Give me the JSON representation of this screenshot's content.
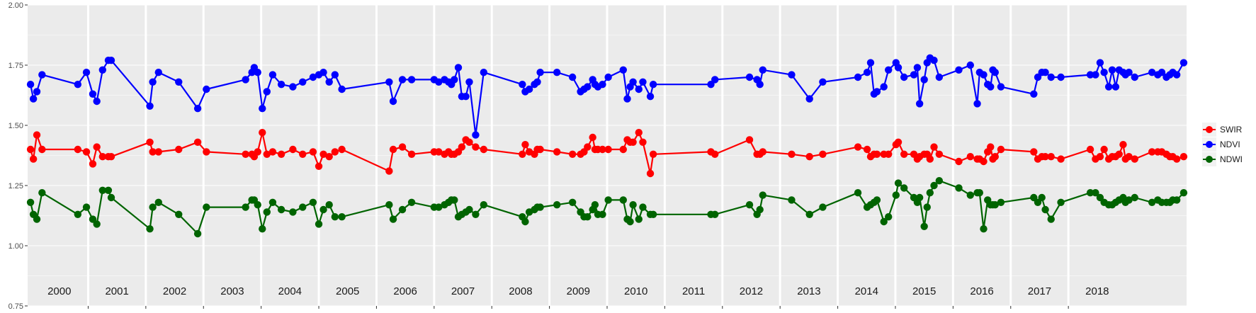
{
  "chart_data": {
    "type": "line",
    "ylim": [
      0.75,
      2.0
    ],
    "y_ticks": [
      "0.75",
      "1.00",
      "1.25",
      "1.50",
      "1.75",
      "2.00"
    ],
    "year_labels": [
      "2000",
      "2001",
      "2002",
      "2003",
      "2004",
      "2005",
      "2006",
      "2007",
      "2008",
      "2009",
      "2010",
      "2011",
      "2012",
      "2013",
      "2014",
      "2015",
      "2016",
      "2017",
      "2018"
    ],
    "grid": true,
    "legend_position": "right",
    "series": [
      {
        "name": "SWIR",
        "color": "#ff0000",
        "x": [
          0.0,
          0.05,
          0.11,
          0.2,
          0.82,
          0.97,
          1.08,
          1.15,
          1.25,
          1.35,
          1.4,
          2.07,
          2.12,
          2.22,
          2.57,
          2.9,
          3.05,
          3.73,
          3.84,
          3.88,
          3.94,
          4.02,
          4.1,
          4.2,
          4.35,
          4.55,
          4.72,
          4.9,
          5.0,
          5.08,
          5.18,
          5.28,
          5.4,
          6.22,
          6.29,
          6.45,
          6.61,
          7.0,
          7.08,
          7.18,
          7.25,
          7.3,
          7.35,
          7.42,
          7.48,
          7.55,
          7.61,
          7.72,
          7.86,
          8.53,
          8.58,
          8.65,
          8.74,
          8.79,
          8.84,
          9.13,
          9.4,
          9.54,
          9.6,
          9.66,
          9.75,
          9.79,
          9.84,
          9.92,
          10.02,
          10.28,
          10.35,
          10.4,
          10.45,
          10.55,
          10.62,
          10.75,
          10.8,
          11.8,
          11.87,
          12.47,
          12.6,
          12.65,
          12.7,
          13.2,
          13.51,
          13.74,
          14.35,
          14.51,
          14.57,
          14.63,
          14.68,
          14.8,
          14.88,
          15.01,
          15.05,
          15.15,
          15.32,
          15.38,
          15.42,
          15.5,
          15.55,
          15.6,
          15.67,
          15.76,
          16.1,
          16.3,
          16.42,
          16.46,
          16.53,
          16.6,
          16.65,
          16.69,
          16.73,
          16.83,
          17.4,
          17.47,
          17.54,
          17.6,
          17.7,
          17.87,
          18.38,
          18.47,
          18.55,
          18.62,
          18.7,
          18.76,
          18.82,
          18.88,
          18.95,
          18.99,
          19.05,
          19.15,
          19.45,
          19.55,
          19.62,
          19.7,
          19.76,
          19.81,
          19.88,
          20.0
        ],
        "values": [
          1.4,
          1.36,
          1.46,
          1.4,
          1.4,
          1.39,
          1.34,
          1.41,
          1.37,
          1.37,
          1.37,
          1.43,
          1.39,
          1.39,
          1.4,
          1.43,
          1.39,
          1.38,
          1.38,
          1.37,
          1.39,
          1.47,
          1.38,
          1.39,
          1.38,
          1.4,
          1.38,
          1.39,
          1.33,
          1.38,
          1.37,
          1.39,
          1.4,
          1.31,
          1.4,
          1.41,
          1.38,
          1.39,
          1.39,
          1.38,
          1.39,
          1.38,
          1.38,
          1.39,
          1.41,
          1.44,
          1.43,
          1.41,
          1.4,
          1.38,
          1.42,
          1.39,
          1.38,
          1.4,
          1.4,
          1.39,
          1.38,
          1.38,
          1.39,
          1.41,
          1.45,
          1.4,
          1.4,
          1.4,
          1.4,
          1.4,
          1.44,
          1.43,
          1.43,
          1.47,
          1.43,
          1.3,
          1.38,
          1.39,
          1.38,
          1.44,
          1.38,
          1.38,
          1.39,
          1.38,
          1.37,
          1.38,
          1.41,
          1.4,
          1.37,
          1.38,
          1.38,
          1.38,
          1.38,
          1.42,
          1.43,
          1.38,
          1.38,
          1.36,
          1.37,
          1.38,
          1.38,
          1.36,
          1.41,
          1.38,
          1.35,
          1.37,
          1.36,
          1.36,
          1.35,
          1.39,
          1.41,
          1.36,
          1.37,
          1.4,
          1.39,
          1.36,
          1.37,
          1.37,
          1.37,
          1.36,
          1.4,
          1.36,
          1.37,
          1.4,
          1.36,
          1.37,
          1.37,
          1.38,
          1.42,
          1.36,
          1.37,
          1.36,
          1.39,
          1.39,
          1.39,
          1.38,
          1.37,
          1.37,
          1.36,
          1.37
        ]
      },
      {
        "name": "NDVI",
        "color": "#0000ff",
        "x": [
          0.0,
          0.05,
          0.11,
          0.2,
          0.82,
          0.97,
          1.08,
          1.15,
          1.25,
          1.35,
          1.4,
          2.07,
          2.12,
          2.22,
          2.57,
          2.9,
          3.05,
          3.73,
          3.84,
          3.88,
          3.94,
          4.02,
          4.1,
          4.2,
          4.35,
          4.55,
          4.72,
          4.9,
          5.0,
          5.08,
          5.18,
          5.28,
          5.4,
          6.22,
          6.29,
          6.45,
          6.61,
          7.0,
          7.08,
          7.18,
          7.25,
          7.3,
          7.35,
          7.42,
          7.48,
          7.55,
          7.61,
          7.72,
          7.86,
          8.53,
          8.58,
          8.65,
          8.74,
          8.79,
          8.84,
          9.13,
          9.4,
          9.54,
          9.6,
          9.66,
          9.75,
          9.79,
          9.84,
          9.92,
          10.02,
          10.28,
          10.35,
          10.4,
          10.45,
          10.55,
          10.62,
          10.75,
          10.8,
          11.8,
          11.87,
          12.47,
          12.6,
          12.65,
          12.7,
          13.2,
          13.51,
          13.74,
          14.35,
          14.51,
          14.57,
          14.63,
          14.68,
          14.8,
          14.88,
          15.01,
          15.05,
          15.15,
          15.32,
          15.38,
          15.42,
          15.5,
          15.55,
          15.6,
          15.67,
          15.76,
          16.1,
          16.3,
          16.42,
          16.46,
          16.53,
          16.6,
          16.65,
          16.69,
          16.73,
          16.83,
          17.4,
          17.47,
          17.54,
          17.6,
          17.7,
          17.87,
          18.38,
          18.47,
          18.55,
          18.62,
          18.7,
          18.76,
          18.82,
          18.88,
          18.95,
          18.99,
          19.05,
          19.15,
          19.45,
          19.55,
          19.62,
          19.7,
          19.76,
          19.81,
          19.88,
          20.0
        ],
        "values": [
          1.67,
          1.61,
          1.64,
          1.71,
          1.67,
          1.72,
          1.63,
          1.6,
          1.73,
          1.77,
          1.77,
          1.58,
          1.68,
          1.72,
          1.68,
          1.57,
          1.65,
          1.69,
          1.72,
          1.74,
          1.72,
          1.57,
          1.64,
          1.71,
          1.67,
          1.66,
          1.68,
          1.7,
          1.71,
          1.72,
          1.68,
          1.71,
          1.65,
          1.68,
          1.6,
          1.69,
          1.69,
          1.69,
          1.68,
          1.69,
          1.68,
          1.67,
          1.69,
          1.74,
          1.62,
          1.62,
          1.68,
          1.46,
          1.72,
          1.67,
          1.64,
          1.65,
          1.67,
          1.68,
          1.72,
          1.72,
          1.7,
          1.64,
          1.65,
          1.66,
          1.69,
          1.67,
          1.66,
          1.67,
          1.7,
          1.73,
          1.61,
          1.66,
          1.68,
          1.65,
          1.68,
          1.62,
          1.67,
          1.67,
          1.69,
          1.7,
          1.69,
          1.67,
          1.73,
          1.71,
          1.61,
          1.68,
          1.7,
          1.72,
          1.76,
          1.63,
          1.64,
          1.66,
          1.73,
          1.76,
          1.74,
          1.7,
          1.71,
          1.74,
          1.59,
          1.69,
          1.76,
          1.78,
          1.77,
          1.7,
          1.73,
          1.75,
          1.59,
          1.72,
          1.71,
          1.67,
          1.66,
          1.73,
          1.72,
          1.66,
          1.63,
          1.7,
          1.72,
          1.72,
          1.7,
          1.7,
          1.71,
          1.71,
          1.76,
          1.72,
          1.66,
          1.73,
          1.66,
          1.73,
          1.72,
          1.71,
          1.72,
          1.7,
          1.72,
          1.71,
          1.72,
          1.7,
          1.71,
          1.72,
          1.71,
          1.76
        ]
      },
      {
        "name": "NDWI",
        "color": "#006400",
        "x": [
          0.0,
          0.05,
          0.11,
          0.2,
          0.82,
          0.97,
          1.08,
          1.15,
          1.25,
          1.35,
          1.4,
          2.07,
          2.12,
          2.22,
          2.57,
          2.9,
          3.05,
          3.73,
          3.84,
          3.88,
          3.94,
          4.02,
          4.1,
          4.2,
          4.35,
          4.55,
          4.72,
          4.9,
          5.0,
          5.08,
          5.18,
          5.28,
          5.4,
          6.22,
          6.29,
          6.45,
          6.61,
          7.0,
          7.08,
          7.18,
          7.25,
          7.3,
          7.35,
          7.42,
          7.48,
          7.55,
          7.61,
          7.72,
          7.86,
          8.53,
          8.58,
          8.65,
          8.74,
          8.79,
          8.84,
          9.13,
          9.4,
          9.54,
          9.6,
          9.66,
          9.75,
          9.79,
          9.84,
          9.92,
          10.02,
          10.28,
          10.35,
          10.4,
          10.45,
          10.55,
          10.62,
          10.75,
          10.8,
          11.8,
          11.87,
          12.47,
          12.6,
          12.65,
          12.7,
          13.2,
          13.51,
          13.74,
          14.35,
          14.51,
          14.57,
          14.63,
          14.68,
          14.8,
          14.88,
          15.01,
          15.05,
          15.15,
          15.32,
          15.38,
          15.42,
          15.5,
          15.55,
          15.6,
          15.67,
          15.76,
          16.1,
          16.3,
          16.42,
          16.46,
          16.53,
          16.6,
          16.65,
          16.69,
          16.73,
          16.83,
          17.4,
          17.47,
          17.54,
          17.6,
          17.7,
          17.87,
          18.38,
          18.47,
          18.55,
          18.62,
          18.7,
          18.76,
          18.82,
          18.88,
          18.95,
          18.99,
          19.05,
          19.15,
          19.45,
          19.55,
          19.62,
          19.7,
          19.76,
          19.81,
          19.88,
          20.0
        ],
        "values": [
          1.18,
          1.13,
          1.11,
          1.22,
          1.13,
          1.16,
          1.11,
          1.09,
          1.23,
          1.23,
          1.2,
          1.07,
          1.16,
          1.18,
          1.13,
          1.05,
          1.16,
          1.16,
          1.19,
          1.19,
          1.17,
          1.07,
          1.14,
          1.18,
          1.15,
          1.14,
          1.16,
          1.18,
          1.09,
          1.15,
          1.17,
          1.12,
          1.12,
          1.17,
          1.11,
          1.15,
          1.18,
          1.16,
          1.16,
          1.17,
          1.18,
          1.19,
          1.19,
          1.12,
          1.13,
          1.14,
          1.15,
          1.13,
          1.17,
          1.12,
          1.1,
          1.14,
          1.15,
          1.16,
          1.16,
          1.17,
          1.18,
          1.14,
          1.12,
          1.12,
          1.15,
          1.17,
          1.13,
          1.13,
          1.19,
          1.19,
          1.11,
          1.1,
          1.17,
          1.11,
          1.16,
          1.13,
          1.13,
          1.13,
          1.13,
          1.17,
          1.13,
          1.15,
          1.21,
          1.19,
          1.13,
          1.16,
          1.22,
          1.16,
          1.17,
          1.18,
          1.19,
          1.1,
          1.12,
          1.21,
          1.26,
          1.24,
          1.2,
          1.18,
          1.2,
          1.08,
          1.16,
          1.22,
          1.25,
          1.27,
          1.24,
          1.21,
          1.22,
          1.22,
          1.07,
          1.19,
          1.17,
          1.17,
          1.17,
          1.18,
          1.2,
          1.18,
          1.2,
          1.15,
          1.11,
          1.18,
          1.22,
          1.22,
          1.2,
          1.18,
          1.17,
          1.17,
          1.18,
          1.19,
          1.2,
          1.18,
          1.19,
          1.2,
          1.18,
          1.19,
          1.18,
          1.18,
          1.18,
          1.19,
          1.19,
          1.22
        ]
      }
    ]
  }
}
